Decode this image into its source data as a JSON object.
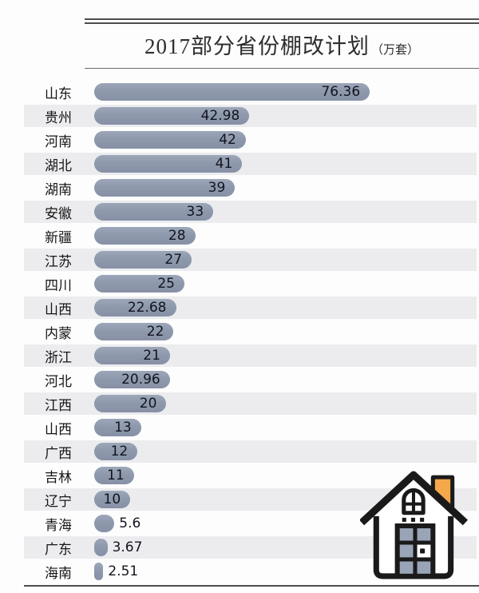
{
  "header": {
    "title": "2017部分省份棚改计划",
    "unit": "（万套）"
  },
  "chart_data": {
    "type": "bar",
    "orientation": "horizontal",
    "title": "2017部分省份棚改计划（万套）",
    "unit_label": "万套",
    "categories": [
      "山东",
      "贵州",
      "河南",
      "湖北",
      "湖南",
      "安徽",
      "新疆",
      "江苏",
      "四川",
      "山西",
      "内蒙",
      "浙江",
      "河北",
      "江西",
      "山西",
      "广西",
      "吉林",
      "辽宁",
      "青海",
      "广东",
      "海南"
    ],
    "values": [
      76.36,
      42.98,
      42,
      41,
      39,
      33,
      28,
      27,
      25,
      22.68,
      22,
      21,
      20.96,
      20,
      13,
      12,
      11,
      10,
      5.6,
      3.67,
      2.51
    ],
    "value_labels": [
      "76.36",
      "42.98",
      "42",
      "41",
      "39",
      "33",
      "28",
      "27",
      "25",
      "22.68",
      "22",
      "21",
      "20.96",
      "20",
      "13",
      "12",
      "11",
      "10",
      "5.6",
      "3.67",
      "2.51"
    ],
    "xlim": [
      0,
      80
    ],
    "grid": false,
    "legend": "none",
    "value_label_position": "inside-end, outside-end below threshold",
    "label_outside_threshold": 10,
    "striped_rows": "every second row"
  },
  "colors": {
    "bar": "#8e99ac",
    "row_stripe": "#ececef",
    "value_text": "#12141f",
    "category_text": "#161616",
    "rule": "#4e4e4e",
    "house_outline": "#1a1a1a",
    "house_chimney": "#f5a74b",
    "house_pane": "#99a4b7"
  },
  "icons": {
    "house": "house-icon"
  }
}
